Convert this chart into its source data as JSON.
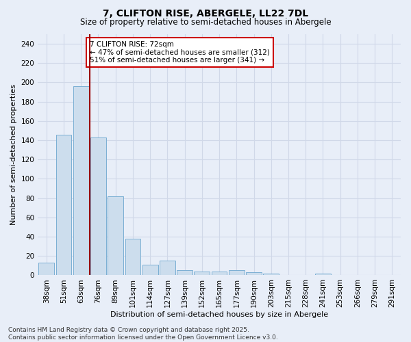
{
  "title": "7, CLIFTON RISE, ABERGELE, LL22 7DL",
  "subtitle": "Size of property relative to semi-detached houses in Abergele",
  "xlabel": "Distribution of semi-detached houses by size in Abergele",
  "ylabel": "Number of semi-detached properties",
  "categories": [
    "38sqm",
    "51sqm",
    "63sqm",
    "76sqm",
    "89sqm",
    "101sqm",
    "114sqm",
    "127sqm",
    "139sqm",
    "152sqm",
    "165sqm",
    "177sqm",
    "190sqm",
    "203sqm",
    "215sqm",
    "228sqm",
    "241sqm",
    "253sqm",
    "266sqm",
    "279sqm",
    "291sqm"
  ],
  "values": [
    13,
    146,
    196,
    143,
    82,
    38,
    11,
    15,
    5,
    4,
    4,
    5,
    3,
    2,
    0,
    0,
    2,
    0,
    0,
    0,
    0
  ],
  "bar_color": "#ccdded",
  "bar_edge_color": "#7bafd4",
  "vline_x": 2.5,
  "vline_color": "#990000",
  "annotation_text": "7 CLIFTON RISE: 72sqm\n← 47% of semi-detached houses are smaller (312)\n51% of semi-detached houses are larger (341) →",
  "annotation_box_facecolor": "#ffffff",
  "annotation_box_edgecolor": "#cc0000",
  "ylim": [
    0,
    250
  ],
  "yticks": [
    0,
    20,
    40,
    60,
    80,
    100,
    120,
    140,
    160,
    180,
    200,
    220,
    240
  ],
  "footer_text": "Contains HM Land Registry data © Crown copyright and database right 2025.\nContains public sector information licensed under the Open Government Licence v3.0.",
  "bg_color": "#e8eef8",
  "plot_bg_color": "#e8eef8",
  "grid_color": "#d0d8e8",
  "title_fontsize": 10,
  "subtitle_fontsize": 8.5,
  "axis_label_fontsize": 8,
  "tick_fontsize": 7.5,
  "annotation_fontsize": 7.5,
  "footer_fontsize": 6.5
}
